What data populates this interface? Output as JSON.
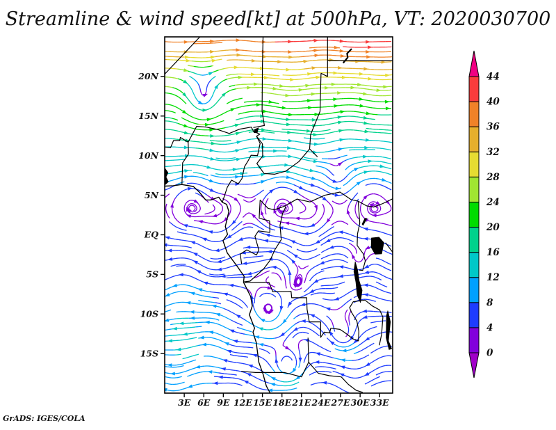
{
  "title": "Streamline & wind speed[kt] at 500hPa, VT: 2020030700",
  "credit": "GrADS: IGES/COLA",
  "chart_data": {
    "type": "streamline",
    "title": "Streamline & wind speed[kt] at 500hPa, VT: 2020030700",
    "variable": "wind speed",
    "units": "kt",
    "pressure_level": "500hPa",
    "valid_time": "2020030700",
    "grid_on": false,
    "x_axis": {
      "tick_labels": [
        "3E",
        "6E",
        "9E",
        "12E",
        "15E",
        "18E",
        "21E",
        "24E",
        "27E",
        "30E",
        "33E"
      ],
      "tick_values": [
        3,
        6,
        9,
        12,
        15,
        18,
        21,
        24,
        27,
        30,
        33
      ],
      "range": [
        0,
        35
      ]
    },
    "y_axis": {
      "tick_labels": [
        "20N",
        "15N",
        "10N",
        "5N",
        "EQ",
        "5S",
        "10S",
        "15S"
      ],
      "tick_values": [
        20,
        15,
        10,
        5,
        0,
        -5,
        -10,
        -15
      ],
      "range": [
        -20,
        25
      ]
    },
    "colorbar": {
      "levels": [
        0,
        4,
        8,
        12,
        16,
        20,
        24,
        28,
        32,
        36,
        40,
        44
      ],
      "colors": [
        "#A000C8",
        "#8200DC",
        "#1E3CFF",
        "#00A0FF",
        "#00C8C8",
        "#00D28C",
        "#00DC00",
        "#A0E632",
        "#E6DC32",
        "#E6AF2D",
        "#F08228",
        "#FA3C3C",
        "#F00082"
      ],
      "position": "right"
    },
    "flow_features": {
      "jet": {
        "description": "strong westerlies 32-46kt along northern edge, max at top-right",
        "lat_band": [
          18,
          25
        ]
      },
      "easterlies": {
        "description": "weak easterlies 0-16kt from 5N southward"
      },
      "vortices": [
        {
          "lon": 6.0,
          "lat": 17.0,
          "spin": 9,
          "r": 3.2
        },
        {
          "lon": 26.5,
          "lat": 7.5,
          "spin": 5,
          "r": 2.3
        },
        {
          "lon": 20.5,
          "lat": -6.3,
          "spin": -4,
          "r": 2.2
        },
        {
          "lon": 16.0,
          "lat": -9.6,
          "spin": -7,
          "r": 3.0
        },
        {
          "lon": 19.0,
          "lat": -16.6,
          "spin": -8,
          "r": 2.6
        },
        {
          "lon": 27.5,
          "lat": -12.6,
          "spin": -5,
          "r": 2.4
        },
        {
          "lon": 29.9,
          "lat": -3.3,
          "spin": -4,
          "r": 2.0
        }
      ]
    }
  },
  "map_geo": {
    "coast": [
      [
        0,
        6.15
      ],
      [
        1.3,
        6.2
      ],
      [
        2.6,
        6.35
      ],
      [
        4.4,
        6.1
      ],
      [
        5.3,
        5.4
      ],
      [
        6.3,
        4.4
      ],
      [
        7.1,
        4.4
      ],
      [
        8.3,
        4.75
      ],
      [
        8.85,
        4.1
      ],
      [
        9.5,
        3.85
      ],
      [
        9.85,
        2.95
      ],
      [
        9.3,
        1.05
      ],
      [
        9.65,
        0.05
      ],
      [
        8.95,
        -0.75
      ],
      [
        9.6,
        -2.3
      ],
      [
        11.15,
        -4.0
      ],
      [
        12.2,
        -5.25
      ],
      [
        12.1,
        -6.0
      ],
      [
        13.2,
        -7.8
      ],
      [
        13.45,
        -9.0
      ],
      [
        13.0,
        -10.1
      ],
      [
        13.8,
        -11.8
      ],
      [
        13.55,
        -12.3
      ],
      [
        14.05,
        -13.6
      ],
      [
        14.45,
        -16.1
      ],
      [
        15.1,
        -17.6
      ],
      [
        15.6,
        -19.1
      ],
      [
        16.2,
        -20.0
      ]
    ],
    "borders": [
      [
        [
          0,
          20.3
        ],
        [
          5.4,
          25
        ]
      ],
      [
        [
          2.65,
          6.4
        ],
        [
          2.75,
          9.1
        ],
        [
          3.65,
          10.2
        ],
        [
          3.6,
          11.7
        ],
        [
          2.4,
          12.3
        ],
        [
          2.3,
          11.9
        ],
        [
          1.35,
          11.9
        ],
        [
          0.9,
          11.0
        ],
        [
          0,
          11.1
        ]
      ],
      [
        [
          3.6,
          11.7
        ],
        [
          4.9,
          13.7
        ],
        [
          6.4,
          13.6
        ],
        [
          8.1,
          13.3
        ],
        [
          9.9,
          12.8
        ],
        [
          11.5,
          13.35
        ],
        [
          13.3,
          13.6
        ],
        [
          13.6,
          13.1
        ],
        [
          14.6,
          12.7
        ],
        [
          14.1,
          12.45
        ],
        [
          15.0,
          11.5
        ]
      ],
      [
        [
          15.1,
          25
        ],
        [
          15.0,
          21.4
        ],
        [
          14.95,
          15.6
        ],
        [
          15.3,
          13.8
        ],
        [
          13.6,
          13.55
        ]
      ],
      [
        [
          24.0,
          20.4
        ],
        [
          23.85,
          15.6
        ],
        [
          22.4,
          12.65
        ],
        [
          22.25,
          10.85
        ],
        [
          23.45,
          9.85
        ]
      ],
      [
        [
          24.0,
          20.4
        ],
        [
          25.0,
          20.0
        ],
        [
          25.0,
          25
        ]
      ],
      [
        [
          25.0,
          22.0
        ],
        [
          35,
          22.0
        ]
      ],
      [
        [
          8.85,
          4.1
        ],
        [
          9.6,
          6.0
        ],
        [
          10.25,
          6.9
        ],
        [
          11.3,
          6.45
        ],
        [
          11.85,
          7.1
        ],
        [
          12.25,
          8.6
        ],
        [
          12.8,
          9.35
        ],
        [
          13.25,
          10.05
        ],
        [
          14.25,
          10.0
        ],
        [
          14.65,
          11.55
        ],
        [
          14.1,
          12.45
        ]
      ],
      [
        [
          15.0,
          11.5
        ],
        [
          15.05,
          9.95
        ],
        [
          14.15,
          9.0
        ],
        [
          15.25,
          7.75
        ],
        [
          16.85,
          7.65
        ],
        [
          18.6,
          8.05
        ],
        [
          20.6,
          9.25
        ],
        [
          22.25,
          10.85
        ]
      ],
      [
        [
          14.65,
          4.4
        ],
        [
          15.85,
          3.35
        ],
        [
          16.8,
          3.15
        ],
        [
          18.35,
          3.6
        ],
        [
          20.3,
          4.5
        ],
        [
          22.3,
          4.15
        ],
        [
          24.6,
          5.0
        ],
        [
          26.9,
          5.4
        ],
        [
          28.6,
          4.45
        ],
        [
          29.7,
          4.25
        ]
      ],
      [
        [
          14.65,
          4.4
        ],
        [
          14.5,
          2.1
        ],
        [
          16.1,
          1.75
        ],
        [
          16.15,
          0.3
        ],
        [
          14.4,
          0.5
        ],
        [
          13.85,
          -0.2
        ],
        [
          14.45,
          -1.9
        ],
        [
          14.1,
          -2.55
        ],
        [
          12.6,
          -1.9
        ],
        [
          11.6,
          -2.45
        ],
        [
          11.8,
          -3.65
        ]
      ],
      [
        [
          18.6,
          3.55
        ],
        [
          18.1,
          2.7
        ],
        [
          17.7,
          1.2
        ],
        [
          17.9,
          -0.6
        ],
        [
          16.9,
          -1.9
        ],
        [
          16.2,
          -3.2
        ],
        [
          15.2,
          -4.3
        ],
        [
          14.4,
          -4.9
        ],
        [
          13.1,
          -5.85
        ],
        [
          12.15,
          -5.95
        ]
      ],
      [
        [
          12.3,
          -6.05
        ],
        [
          16.0,
          -6.0
        ],
        [
          16.6,
          -7.2
        ],
        [
          19.4,
          -7.15
        ],
        [
          19.5,
          -7.95
        ],
        [
          21.8,
          -7.95
        ],
        [
          21.85,
          -9.4
        ],
        [
          22.2,
          -11.0
        ],
        [
          23.95,
          -11.0
        ],
        [
          23.95,
          -12.95
        ],
        [
          24.5,
          -12.3
        ],
        [
          25.3,
          -12.4
        ],
        [
          25.5,
          -11.8
        ],
        [
          26.9,
          -11.95
        ],
        [
          27.55,
          -12.3
        ],
        [
          28.2,
          -12.7
        ],
        [
          28.9,
          -13.15
        ],
        [
          29.75,
          -13.4
        ],
        [
          29.8,
          -12.2
        ],
        [
          29.5,
          -10.9
        ],
        [
          28.65,
          -9.75
        ],
        [
          28.4,
          -9.2
        ],
        [
          28.95,
          -8.45
        ],
        [
          30.75,
          -8.25
        ]
      ],
      [
        [
          30.75,
          -8.25
        ],
        [
          31.9,
          -9.0
        ],
        [
          33.0,
          -9.5
        ],
        [
          33.5,
          -10.4
        ],
        [
          33.3,
          -12.55
        ],
        [
          32.95,
          -13.95
        ]
      ],
      [
        [
          11.75,
          -17.25
        ],
        [
          13.95,
          -17.4
        ],
        [
          18.4,
          -17.4
        ],
        [
          21.0,
          -17.95
        ],
        [
          22.1,
          -16.1
        ],
        [
          22.0,
          -13.0
        ]
      ],
      [
        [
          22.1,
          -16.1
        ],
        [
          23.6,
          -17.5
        ],
        [
          25.3,
          -17.8
        ],
        [
          27.1,
          -17.95
        ],
        [
          28.2,
          -18.9
        ],
        [
          29.4,
          -19.65
        ],
        [
          30.4,
          -19.9
        ]
      ],
      [
        [
          29.7,
          4.25
        ],
        [
          31.0,
          3.65
        ],
        [
          32.1,
          3.5
        ],
        [
          33.5,
          3.95
        ],
        [
          35,
          4.55
        ]
      ],
      [
        [
          29.6,
          0.1
        ],
        [
          29.55,
          -1.35
        ],
        [
          30.5,
          -2.4
        ],
        [
          30.8,
          -3.3
        ],
        [
          30.4,
          -4.5
        ],
        [
          29.85,
          -4.45
        ]
      ],
      [
        [
          29.7,
          4.25
        ],
        [
          29.95,
          1.5
        ],
        [
          29.6,
          0.1
        ]
      ],
      [
        [
          33.9,
          -1.0
        ],
        [
          35,
          -2.2
        ]
      ]
    ],
    "lakes": [
      [
        [
          0,
          8.45
        ],
        [
          0.5,
          7.85
        ],
        [
          0.2,
          7.3
        ],
        [
          0.55,
          6.7
        ],
        [
          0.1,
          6.35
        ],
        [
          0,
          6.4
        ]
      ],
      [
        [
          31.75,
          -0.4
        ],
        [
          32.9,
          -0.3
        ],
        [
          33.65,
          -1.0
        ],
        [
          33.3,
          -2.4
        ],
        [
          32.3,
          -2.45
        ],
        [
          31.7,
          -1.6
        ]
      ],
      [
        [
          29.25,
          -3.4
        ],
        [
          29.6,
          -4.4
        ],
        [
          29.85,
          -5.8
        ],
        [
          30.3,
          -7.0
        ],
        [
          30.05,
          -8.55
        ],
        [
          29.55,
          -7.6
        ],
        [
          29.35,
          -6.0
        ],
        [
          29.05,
          -4.6
        ]
      ],
      [
        [
          34.25,
          -9.6
        ],
        [
          34.65,
          -11.0
        ],
        [
          34.35,
          -13.4
        ],
        [
          34.85,
          -14.4
        ],
        [
          34.45,
          -14.5
        ],
        [
          34.0,
          -13.0
        ],
        [
          34.05,
          -10.2
        ]
      ],
      [
        [
          30.45,
          1.2
        ],
        [
          31.05,
          2.05
        ],
        [
          30.75,
          2.1
        ],
        [
          30.3,
          1.35
        ]
      ],
      [
        [
          13.8,
          13.3
        ],
        [
          14.4,
          13.5
        ],
        [
          14.2,
          12.9
        ],
        [
          13.7,
          12.9
        ]
      ]
    ],
    "marks": [
      [
        [
          27.4,
          21.7
        ],
        [
          28.1,
          22.4
        ],
        [
          28.0,
          22.9
        ],
        [
          28.7,
          23.5
        ]
      ]
    ]
  }
}
